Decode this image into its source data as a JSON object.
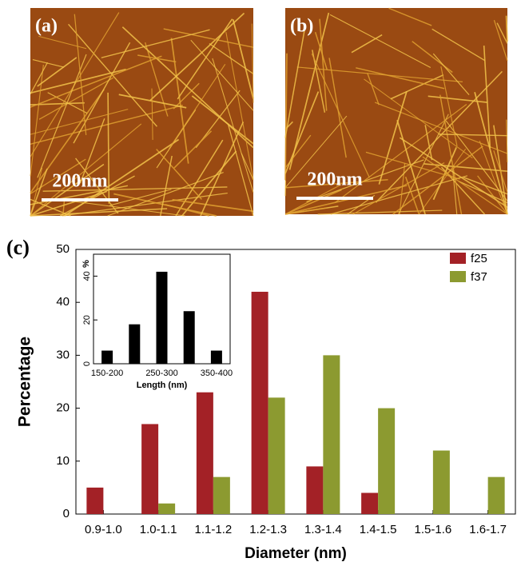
{
  "images": [
    {
      "label": "(a)",
      "scale_bar": "200nm"
    },
    {
      "label": "(b)",
      "scale_bar": "200nm"
    }
  ],
  "chart_data": [
    {
      "type": "bar",
      "label": "(c)",
      "x_label": "Diameter (nm)",
      "y_label": "Percentage",
      "categories": [
        "0.9-1.0",
        "1.0-1.1",
        "1.1-1.2",
        "1.2-1.3",
        "1.3-1.4",
        "1.4-1.5",
        "1.5-1.6",
        "1.6-1.7"
      ],
      "series": [
        {
          "name": "f25",
          "color": "#a32126",
          "values": [
            5,
            17,
            23,
            42,
            9,
            4,
            0,
            0
          ]
        },
        {
          "name": "f37",
          "color": "#8c9a30",
          "values": [
            0,
            2,
            7,
            22,
            30,
            20,
            12,
            7
          ]
        }
      ],
      "ylim": [
        0,
        50
      ],
      "yticks": [
        0,
        10,
        20,
        30,
        40,
        50
      ],
      "legend": "upper right"
    },
    {
      "type": "bar",
      "x_label": "Length (nm)",
      "y_label": "%",
      "categories": [
        "150-200",
        null,
        "250-300",
        null,
        "350-400"
      ],
      "values": [
        6,
        18,
        42,
        24,
        6
      ],
      "color": "#000000",
      "ylim": [
        0,
        50
      ],
      "yticks": [
        0,
        20,
        40
      ]
    }
  ]
}
